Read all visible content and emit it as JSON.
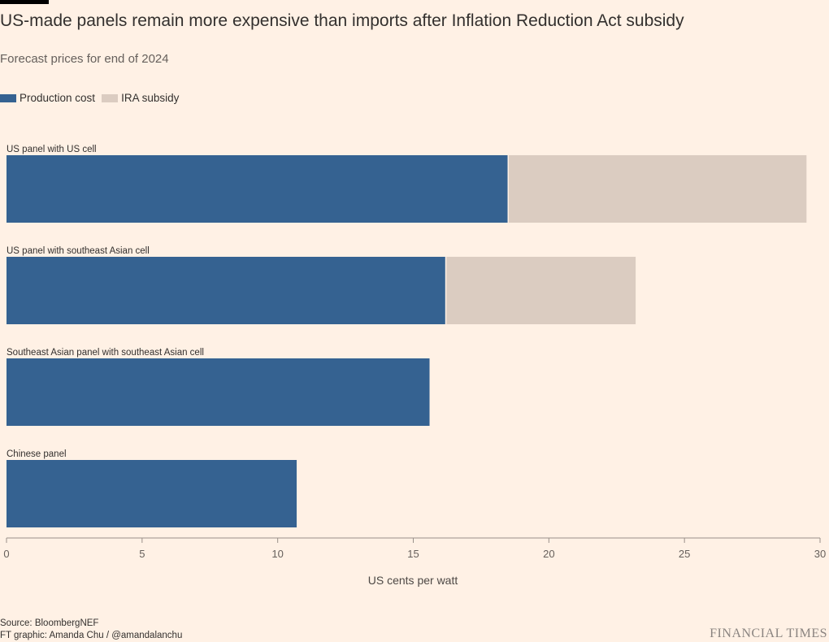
{
  "title": "US-made panels remain more expensive than imports after Inflation Reduction Act subsidy",
  "subtitle": "Forecast prices for end of 2024",
  "legend": {
    "production": "Production cost",
    "subsidy": "IRA subsidy"
  },
  "colors": {
    "production": "#356291",
    "subsidy": "#dbccc1",
    "background": "#fff1e5",
    "axis": "#999089"
  },
  "footer": {
    "source": "Source: BloombergNEF",
    "credit": "FT graphic: Amanda Chu / @amandalanchu",
    "brand": "FINANCIAL TIMES"
  },
  "chart_data": {
    "type": "bar",
    "orientation": "horizontal",
    "stacked": true,
    "categories": [
      "US panel with US cell",
      "US panel with southeast Asian cell",
      "Southeast Asian panel with southeast Asian cell",
      "Chinese panel"
    ],
    "series": [
      {
        "name": "Production cost",
        "values": [
          18.5,
          16.2,
          15.6,
          10.7
        ]
      },
      {
        "name": "IRA subsidy",
        "values": [
          11.0,
          7.0,
          0,
          0
        ]
      }
    ],
    "xlabel": "US cents per watt",
    "xlim": [
      0,
      30
    ],
    "xticks": [
      0,
      5,
      10,
      15,
      20,
      25,
      30
    ],
    "legend_position": "top-left",
    "grid": false
  }
}
